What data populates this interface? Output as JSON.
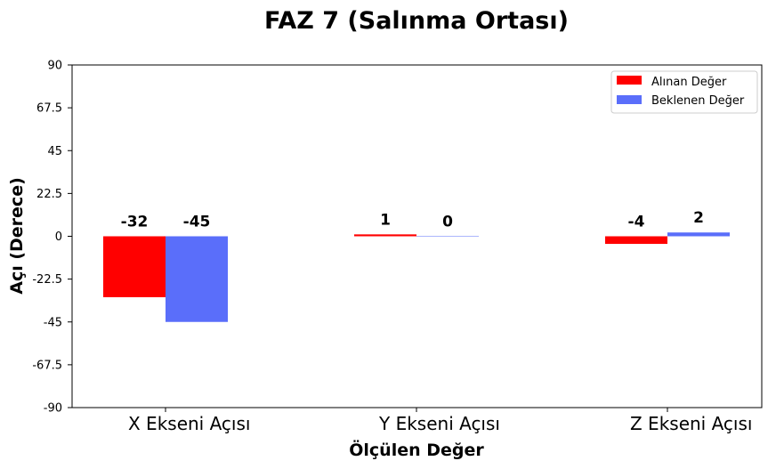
{
  "chart_data": {
    "type": "bar",
    "title": "FAZ 7 (Salınma Ortası)",
    "xlabel": "Ölçülen Değer",
    "ylabel": "Açı (Derece)",
    "categories": [
      "X Ekseni Açısı",
      "Y Ekseni Açısı",
      "Z Ekseni Açısı"
    ],
    "series": [
      {
        "name": "Alınan Değer",
        "values": [
          -32,
          1,
          -4
        ],
        "color": "#ff0000"
      },
      {
        "name": "Beklenen Değer",
        "values": [
          -45,
          0,
          2
        ],
        "color": "#5a6efa"
      }
    ],
    "ylim": [
      -90,
      90
    ],
    "yticks": [
      90,
      67.5,
      45,
      22.5,
      0,
      -22.5,
      -45,
      -67.5,
      -90
    ],
    "ytick_labels": [
      "90",
      "67.5",
      "45",
      "22.5",
      "0",
      "-22.5",
      "-45",
      "-67.5",
      "-90"
    ],
    "grid": false,
    "legend_position": "top-right"
  }
}
